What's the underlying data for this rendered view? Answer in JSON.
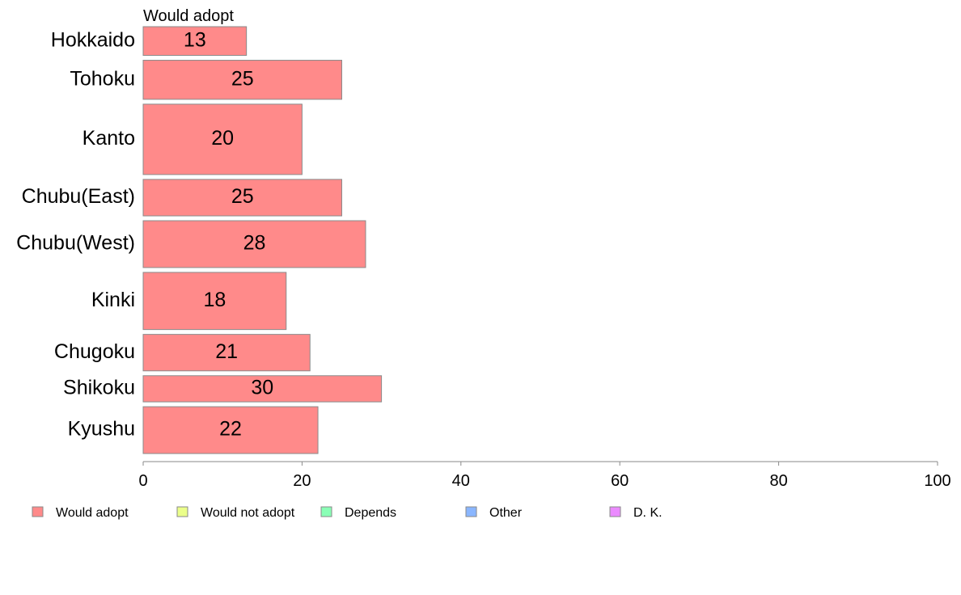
{
  "chart_data": {
    "type": "bar",
    "orientation": "horizontal",
    "stacked": true,
    "title": "",
    "column_header": "Would adopt",
    "categories": [
      "Hokkaido",
      "Tohoku",
      "Kanto",
      "Chubu(East)",
      "Chubu(West)",
      "Kinki",
      "Chugoku",
      "Shikoku",
      "Kyushu"
    ],
    "category_weights": [
      1.0,
      1.36,
      2.45,
      1.27,
      1.63,
      1.99,
      1.27,
      0.91,
      1.63
    ],
    "series": [
      {
        "name": "Would adopt",
        "color": "#ff8a8a",
        "values": [
          13,
          25,
          20,
          25,
          28,
          18,
          21,
          30,
          22
        ],
        "labels": [
          "13",
          "25",
          "20",
          "25",
          "28",
          "18",
          "21",
          "30",
          "22"
        ]
      }
    ],
    "legend": [
      {
        "name": "Would adopt",
        "color": "#ff8a8a"
      },
      {
        "name": "Would not adopt",
        "color": "#ebff8a"
      },
      {
        "name": "Depends",
        "color": "#8affb6"
      },
      {
        "name": "Other",
        "color": "#8ab6ff"
      },
      {
        "name": "D. K.",
        "color": "#eb8aff"
      }
    ],
    "legend_position": "bottom-left",
    "xlim": [
      0,
      100
    ],
    "xticks": [
      "0",
      "20",
      "40",
      "60",
      "80",
      "100"
    ],
    "xlabel": "",
    "ylabel": "",
    "grid": false
  }
}
